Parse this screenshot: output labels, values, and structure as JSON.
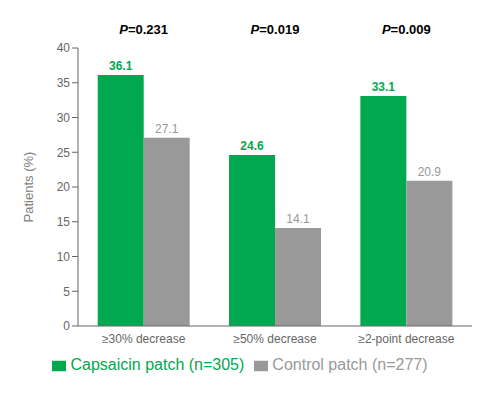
{
  "chart_data": {
    "type": "bar",
    "categories": [
      "≥30% decrease",
      "≥50% decrease",
      "≥2-point decrease"
    ],
    "series": [
      {
        "name": "Capsaicin patch (n=305)",
        "color": "#00A850",
        "values": [
          36.1,
          24.6,
          33.1
        ]
      },
      {
        "name": "Control patch (n=277)",
        "color": "#999999",
        "values": [
          27.1,
          14.1,
          20.9
        ]
      }
    ],
    "ylabel": "Patients (%)",
    "ylim": [
      0,
      40
    ],
    "yticks": [
      0,
      5,
      10,
      15,
      20,
      25,
      30,
      35,
      40
    ],
    "annotations": [
      "P=0.231",
      "P=0.019",
      "P=0.009"
    ],
    "data_labels": true,
    "grid": false,
    "legend": "bottom"
  }
}
